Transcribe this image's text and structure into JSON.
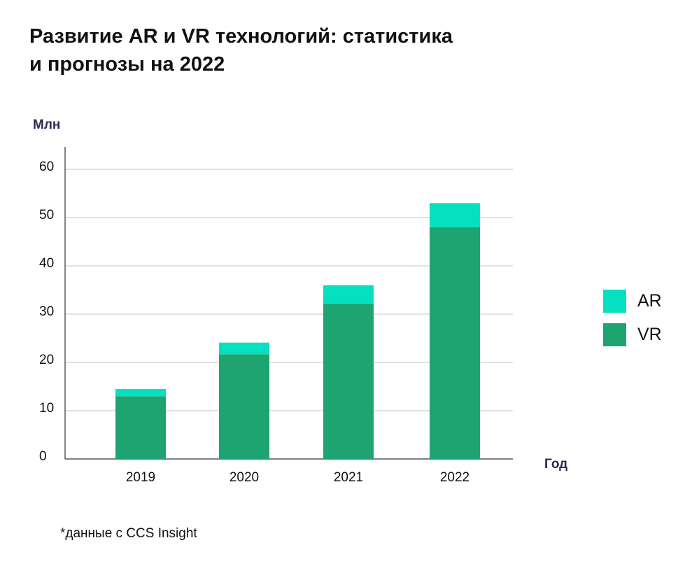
{
  "title_lines": [
    "Развитие AR и VR технологий: статистика",
    "и прогнозы на 2022"
  ],
  "source_note": "*данные с CCS Insight",
  "chart_data": {
    "type": "bar",
    "stacked": true,
    "title": "Развитие AR и VR технологий: статистика и прогнозы на 2022",
    "xlabel": "Год",
    "ylabel": "Млн",
    "categories": [
      "2019",
      "2020",
      "2021",
      "2022"
    ],
    "series": [
      {
        "name": "VR",
        "color": "#1ea471",
        "values": [
          13,
          21.7,
          32.2,
          48
        ]
      },
      {
        "name": "AR",
        "color": "#05e0c0",
        "values": [
          1.5,
          2.4,
          3.8,
          5
        ]
      }
    ],
    "ylim": [
      0,
      66
    ],
    "yticks": [
      0,
      10,
      20,
      30,
      40,
      50,
      60
    ],
    "grid": true,
    "legend": "right"
  }
}
